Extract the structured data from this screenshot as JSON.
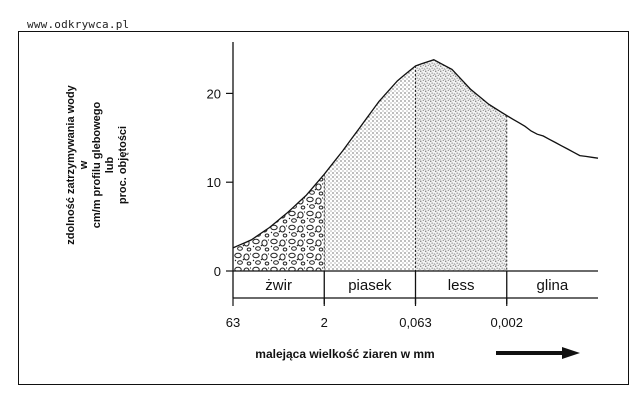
{
  "watermark": "www.odkrywca.pl",
  "chart_data": {
    "type": "area",
    "ylabel_lines": [
      "zdolność zatrzymywania wody",
      "w",
      "cm/m profilu glebowego",
      "lub",
      "proc. objętości"
    ],
    "xlabel": "malejąca wielkość ziaren w mm",
    "y_ticks": [
      0,
      10,
      20
    ],
    "ylim": [
      0,
      25
    ],
    "x_ticks": [
      "63",
      "2",
      "0,063",
      "0,002"
    ],
    "curve": {
      "x": [
        0.0,
        0.2,
        0.4,
        0.6,
        0.8,
        1.0,
        1.2,
        1.4,
        1.6,
        1.8,
        2.0,
        2.2,
        2.4,
        2.6,
        2.8,
        3.0,
        3.2,
        3.3,
        3.4,
        3.6,
        3.8,
        4.0
      ],
      "y": [
        2.6,
        3.5,
        4.9,
        6.6,
        8.5,
        10.9,
        13.5,
        16.3,
        19.1,
        21.4,
        23.1,
        23.8,
        22.7,
        20.5,
        18.8,
        17.5,
        16.3,
        15.5,
        15.2,
        14.1,
        13.0,
        12.7
      ],
      "x_end": 4.0
    },
    "classes": [
      {
        "name": "żwir",
        "from": 0,
        "to": 1,
        "fill": "gravel"
      },
      {
        "name": "piasek",
        "from": 1,
        "to": 2,
        "fill": "sand"
      },
      {
        "name": "less",
        "from": 2,
        "to": 3,
        "fill": "silt"
      },
      {
        "name": "glina",
        "from": 3,
        "to": 4,
        "fill": "none"
      }
    ],
    "arrow": "right-arrow",
    "grid": false
  }
}
